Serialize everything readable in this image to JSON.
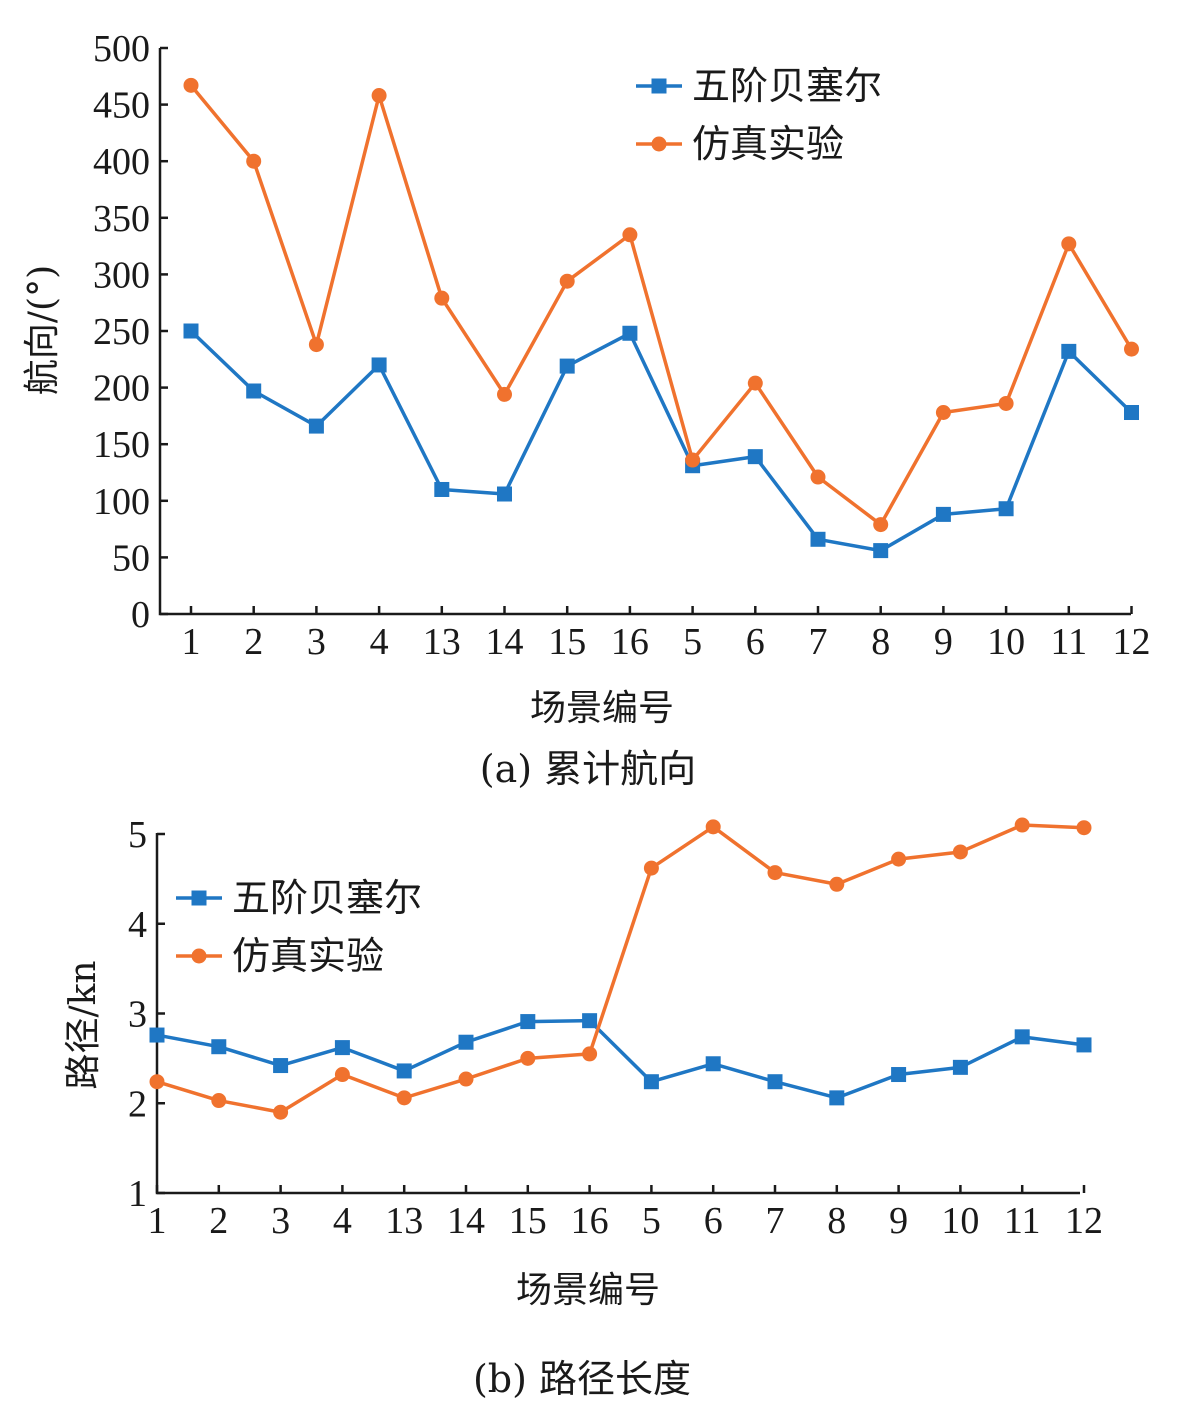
{
  "colors": {
    "bezier": "#1f77c4",
    "sim": "#f0722e",
    "axis": "#1a1a1a"
  },
  "chart_data": [
    {
      "type": "line",
      "caption": "(a) 累计航向",
      "xlabel": "场景编号",
      "ylabel": "航向/(°)",
      "categories": [
        "1",
        "2",
        "3",
        "4",
        "13",
        "14",
        "15",
        "16",
        "5",
        "6",
        "7",
        "8",
        "9",
        "10",
        "11",
        "12"
      ],
      "ylim": [
        0,
        500
      ],
      "yticks": [
        "0",
        "50",
        "100",
        "150",
        "200",
        "250",
        "300",
        "350",
        "400",
        "450",
        "500"
      ],
      "legend_position": "top-right",
      "series": [
        {
          "name": "五阶贝塞尔",
          "marker": "square",
          "values": [
            250,
            197,
            166,
            220,
            110,
            106,
            219,
            248,
            131,
            139,
            66,
            56,
            88,
            93,
            232,
            178
          ]
        },
        {
          "name": "仿真实验",
          "marker": "circle",
          "values": [
            467,
            400,
            238,
            458,
            279,
            194,
            294,
            335,
            136,
            204,
            121,
            79,
            178,
            186,
            327,
            234
          ]
        }
      ]
    },
    {
      "type": "line",
      "caption": "(b) 路径长度",
      "xlabel": "场景编号",
      "ylabel": "路径/kn",
      "categories": [
        "1",
        "2",
        "3",
        "4",
        "13",
        "14",
        "15",
        "16",
        "5",
        "6",
        "7",
        "8",
        "9",
        "10",
        "11",
        "12"
      ],
      "ylim": [
        1,
        5
      ],
      "yticks": [
        "1",
        "2",
        "3",
        "4",
        "5"
      ],
      "legend_position": "top-left",
      "series": [
        {
          "name": "五阶贝塞尔",
          "marker": "square",
          "values": [
            2.76,
            2.63,
            2.42,
            2.62,
            2.36,
            2.68,
            2.91,
            2.92,
            2.24,
            2.44,
            2.24,
            2.06,
            2.32,
            2.4,
            2.74,
            2.65
          ]
        },
        {
          "name": "仿真实验",
          "marker": "circle",
          "values": [
            2.24,
            2.03,
            1.9,
            2.32,
            2.06,
            2.27,
            2.5,
            2.55,
            4.62,
            5.08,
            4.57,
            4.44,
            4.72,
            4.8,
            5.1,
            5.07
          ]
        }
      ]
    }
  ]
}
